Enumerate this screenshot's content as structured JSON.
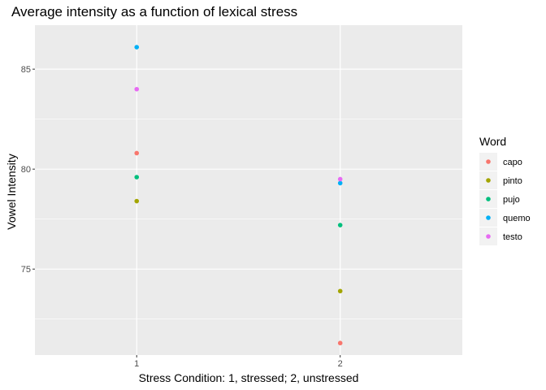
{
  "chart_data": {
    "type": "scatter",
    "title": "Average intensity as a function of lexical stress",
    "xlabel": "Stress Condition: 1, stressed; 2, unstressed",
    "ylabel": "Vowel Intensity",
    "x_categories": [
      "1",
      "2"
    ],
    "xlim": [
      0.5,
      2.6
    ],
    "ylim": [
      70.7,
      87.2
    ],
    "y_ticks": [
      75,
      80,
      85
    ],
    "grid": true,
    "legend": {
      "title": "Word",
      "placement": "right"
    },
    "series": [
      {
        "name": "capo",
        "color": "#F8766D",
        "points": [
          {
            "x": 1,
            "y": 80.8
          },
          {
            "x": 2,
            "y": 71.3
          }
        ]
      },
      {
        "name": "pinto",
        "color": "#A3A500",
        "points": [
          {
            "x": 1,
            "y": 78.4
          },
          {
            "x": 2,
            "y": 73.9
          }
        ]
      },
      {
        "name": "pujo",
        "color": "#00BF7D",
        "points": [
          {
            "x": 1,
            "y": 79.6
          },
          {
            "x": 2,
            "y": 77.2
          }
        ]
      },
      {
        "name": "quemo",
        "color": "#00B0F6",
        "points": [
          {
            "x": 1,
            "y": 86.1
          },
          {
            "x": 2,
            "y": 79.3
          }
        ]
      },
      {
        "name": "testo",
        "color": "#E76BF3",
        "points": [
          {
            "x": 1,
            "y": 84.0
          },
          {
            "x": 2,
            "y": 79.5
          }
        ]
      }
    ]
  }
}
